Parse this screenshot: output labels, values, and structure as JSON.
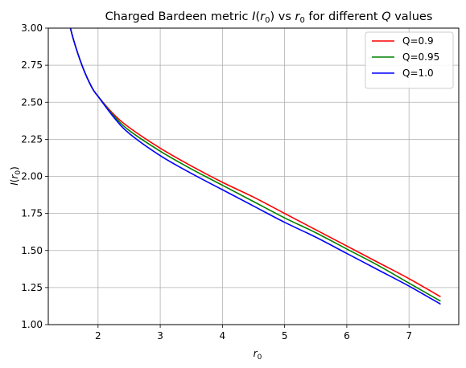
{
  "chart_data": {
    "type": "line",
    "title": {
      "pre": "Charged Bardeen metric ",
      "ivar": "I",
      "open1": "(",
      "rvar1": "r",
      "sub1": "0",
      "close1": ")",
      "mid": " vs ",
      "rvar2": "r",
      "sub2": "0",
      "post": " for different ",
      "qvar": "Q",
      "tail": " values"
    },
    "xlabel": {
      "var": "r",
      "sub": "0"
    },
    "ylabel": {
      "ivar": "I",
      "open": "(",
      "var": "r",
      "sub": "0",
      "close": ")"
    },
    "xlim": [
      1.2,
      7.8
    ],
    "ylim": [
      1.0,
      3.0
    ],
    "xticks": [
      2,
      3,
      4,
      5,
      6,
      7
    ],
    "xtick_labels": [
      "2",
      "3",
      "4",
      "5",
      "6",
      "7"
    ],
    "yticks": [
      1.0,
      1.25,
      1.5,
      1.75,
      2.0,
      2.25,
      2.5,
      2.75,
      3.0
    ],
    "ytick_labels": [
      "1.00",
      "1.25",
      "1.50",
      "1.75",
      "2.00",
      "2.25",
      "2.50",
      "2.75",
      "3.00"
    ],
    "grid": true,
    "legend_position": "top-right",
    "series": [
      {
        "name": "Q=0.9",
        "color": "#ff0000",
        "x": [
          1.5,
          1.6,
          1.75,
          1.9,
          2.0,
          2.25,
          2.5,
          3.0,
          3.5,
          4.0,
          4.5,
          5.0,
          5.5,
          6.0,
          6.5,
          7.0,
          7.5
        ],
        "y": [
          3.1,
          2.93,
          2.74,
          2.6,
          2.54,
          2.42,
          2.33,
          2.19,
          2.07,
          1.96,
          1.86,
          1.75,
          1.64,
          1.53,
          1.42,
          1.31,
          1.19
        ]
      },
      {
        "name": "Q=0.95",
        "color": "#008000",
        "x": [
          1.5,
          1.6,
          1.75,
          1.9,
          2.0,
          2.25,
          2.5,
          3.0,
          3.5,
          4.0,
          4.5,
          5.0,
          5.5,
          6.0,
          6.5,
          7.0,
          7.5
        ],
        "y": [
          3.1,
          2.93,
          2.74,
          2.6,
          2.54,
          2.41,
          2.31,
          2.17,
          2.05,
          1.94,
          1.83,
          1.72,
          1.62,
          1.51,
          1.4,
          1.28,
          1.16
        ]
      },
      {
        "name": "Q=1.0",
        "color": "#0000ff",
        "x": [
          1.5,
          1.6,
          1.75,
          1.9,
          2.0,
          2.25,
          2.5,
          3.0,
          3.5,
          4.0,
          4.5,
          5.0,
          5.5,
          6.0,
          6.5,
          7.0,
          7.5
        ],
        "y": [
          3.1,
          2.93,
          2.74,
          2.6,
          2.54,
          2.4,
          2.29,
          2.14,
          2.02,
          1.91,
          1.8,
          1.69,
          1.59,
          1.48,
          1.37,
          1.26,
          1.14
        ]
      }
    ]
  }
}
